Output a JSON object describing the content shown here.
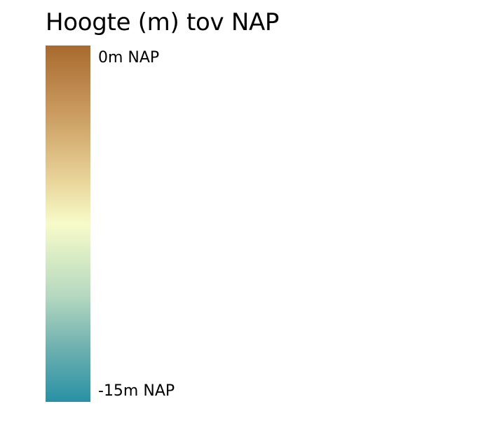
{
  "legend": {
    "title": "Hoogte (m) tov NAP",
    "max_label": "0m NAP",
    "min_label": "-15m NAP",
    "max_value": 0,
    "min_value": -15,
    "unit": "m NAP",
    "color_stops": [
      {
        "offset": 0.0,
        "color": "#a86a2e"
      },
      {
        "offset": 0.2,
        "color": "#cc9e63"
      },
      {
        "offset": 0.38,
        "color": "#e9d49a"
      },
      {
        "offset": 0.5,
        "color": "#f7fbc9"
      },
      {
        "offset": 0.7,
        "color": "#b6d9c0"
      },
      {
        "offset": 0.85,
        "color": "#6eb0b0"
      },
      {
        "offset": 1.0,
        "color": "#2891a5"
      }
    ]
  }
}
